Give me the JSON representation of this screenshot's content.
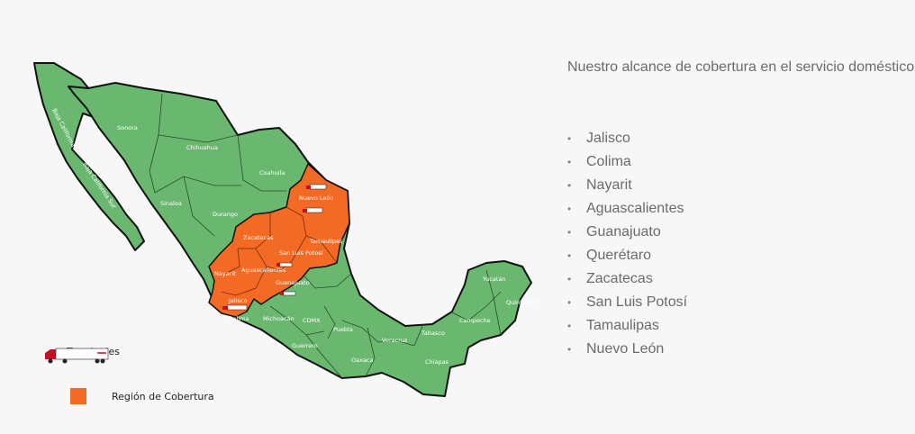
{
  "colors": {
    "covered_region": "#f26a23",
    "uncovered_region": "#6ab86f",
    "border": "#111111",
    "text_muted": "#6b6b6b",
    "background": "#f7f7f7"
  },
  "map": {
    "state_labels": {
      "baja_california": "Baja California",
      "baja_california_sur": "Baja California Sur",
      "sonora": "Sonora",
      "chihuahua": "Chihuahua",
      "coahuila": "Coahuila",
      "nuevo_leon": "Nuevo León",
      "sinaloa": "Sinaloa",
      "durango": "Durango",
      "tamaulipas": "Tamaulipas",
      "zacatecas": "Zacatecas",
      "san_luis_potosi": "San Luis Potosí",
      "nayarit": "Nayarit",
      "aguascalientes": "Aguascalientes",
      "guanajuato": "Guanajuato",
      "jalisco": "Jalisco",
      "colima": "Colima",
      "michoacan": "Michoacán",
      "cdmx": "CDMX",
      "puebla": "Puebla",
      "veracruz": "Veracruz",
      "guerrero": "Guerrero",
      "oaxaca": "Oaxaca",
      "chiapas": "Chiapas",
      "tabasco": "Tabasco",
      "campeche": "Campeche",
      "yucatan": "Yucatán",
      "quintana_roo": "Quintana Roo"
    },
    "terminal_icon": "truck-icon"
  },
  "legend": {
    "terminals_label": "Terminales",
    "coverage_label": "Región de Cobertura"
  },
  "coverage": {
    "title": "Nuestro alcance de cobertura en el servicio doméstico",
    "bullet": "•",
    "states": [
      "Jalisco",
      "Colima",
      "Nayarit",
      "Aguascalientes",
      "Guanajuato",
      "Querétaro",
      "Zacatecas",
      "San Luis Potosí",
      "Tamaulipas",
      "Nuevo León"
    ]
  }
}
